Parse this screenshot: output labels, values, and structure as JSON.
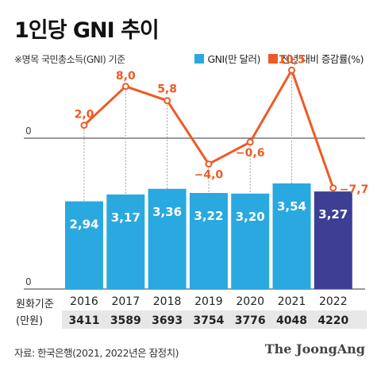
{
  "title": "1인당 GNI 추이",
  "note": "※명목 국민총소득(GNI) 기준",
  "legend": {
    "bar": "GNI(만 달러)",
    "line": "전년 대비 증감률(%)"
  },
  "colors": {
    "bar": "#29a9df",
    "bar_highlight": "#3c3f94",
    "line": "#ee5a24",
    "dotted": "#999999",
    "axis": "#333333",
    "krw_row_bg": "#e7e7e7"
  },
  "source": "자료: 한국은행(2021, 2022년은 잠정치)",
  "brand": "The JoongAng",
  "chart_data": {
    "type": "bar",
    "categories": [
      "2016",
      "2017",
      "2018",
      "2019",
      "2020",
      "2021",
      "2022"
    ],
    "series": [
      {
        "name": "GNI(만 달러)",
        "values": [
          2.94,
          3.17,
          3.36,
          3.22,
          3.2,
          3.54,
          3.27
        ],
        "labels": [
          "2,94",
          "3,17",
          "3,36",
          "3,22",
          "3,20",
          "3,54",
          "3,27"
        ]
      },
      {
        "name": "전년 대비 증감률(%)",
        "type": "line",
        "values": [
          2.0,
          8.0,
          5.8,
          -4.0,
          -0.6,
          10.5,
          -7.7
        ],
        "labels": [
          "2,0",
          "8,0",
          "5,8",
          "−4,0",
          "−0,6",
          "10,5",
          "−7,7"
        ]
      }
    ],
    "krw_label": [
      "원화기준",
      "(만원)"
    ],
    "krw_values": [
      "3411",
      "3589",
      "3693",
      "3754",
      "3776",
      "4048",
      "4220"
    ],
    "zero_label": "0",
    "highlight_index": 6
  }
}
